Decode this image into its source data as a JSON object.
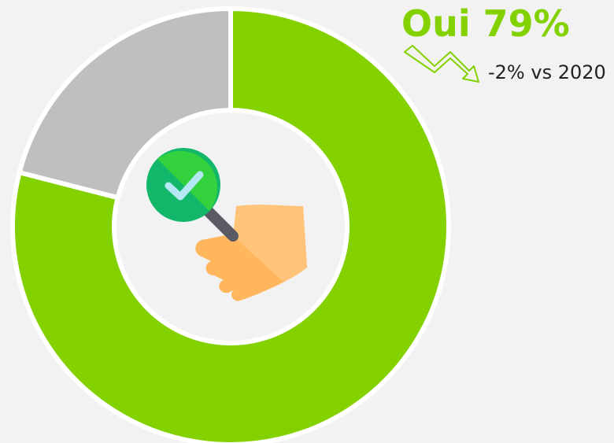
{
  "chart_data": {
    "type": "pie",
    "donut": true,
    "categories": [
      "Oui",
      null
    ],
    "values": [
      79,
      21
    ],
    "value_labels": [
      "79%",
      null
    ],
    "colors": [
      "#84d100",
      "#bfbfbf"
    ],
    "annotation": "-2% vs 2020"
  }
}
